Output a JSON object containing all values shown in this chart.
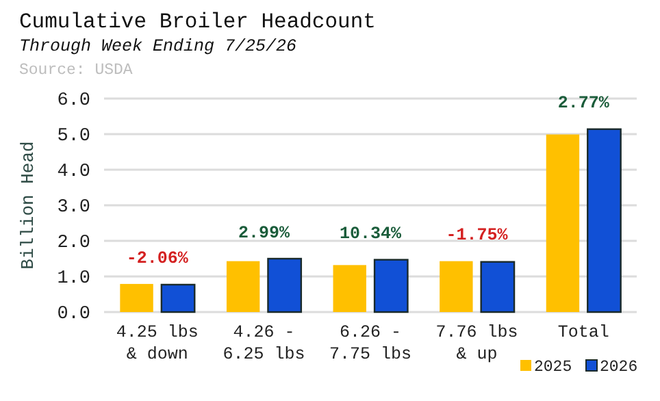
{
  "chart_data": {
    "type": "bar",
    "title": "Cumulative Broiler Headcount",
    "subtitle": "Through Week Ending 7/25/26",
    "ylabel": "Billion Head",
    "categories": [
      "4.25 lbs & down",
      "4.26 - 6.25 lbs",
      "6.26 - 7.75 lbs",
      "7.76 lbs & up",
      "Total"
    ],
    "series": [
      {
        "name": "2025",
        "color": "#ffc000",
        "values": [
          0.79,
          1.43,
          1.32,
          1.43,
          4.99
        ]
      },
      {
        "name": "2026",
        "color": "#1150d6",
        "values": [
          0.77,
          1.5,
          1.47,
          1.41,
          5.14
        ]
      }
    ],
    "annotations": [
      "Source: USDA",
      "-2.06%",
      "2.99%",
      "10.34%",
      "-1.75%",
      "2.77%"
    ],
    "ylim": [
      0,
      6
    ],
    "yticks": [
      {
        "value": 0,
        "label": "0.0"
      },
      {
        "value": 1,
        "label": "1.0"
      },
      {
        "value": 2,
        "label": "2.0"
      },
      {
        "value": 3,
        "label": "3.0"
      },
      {
        "value": 4,
        "label": "4.0"
      },
      {
        "value": 5,
        "label": "5.0"
      },
      {
        "value": 6,
        "label": "6.0"
      }
    ],
    "grid": "y",
    "legend": "bottom right"
  }
}
